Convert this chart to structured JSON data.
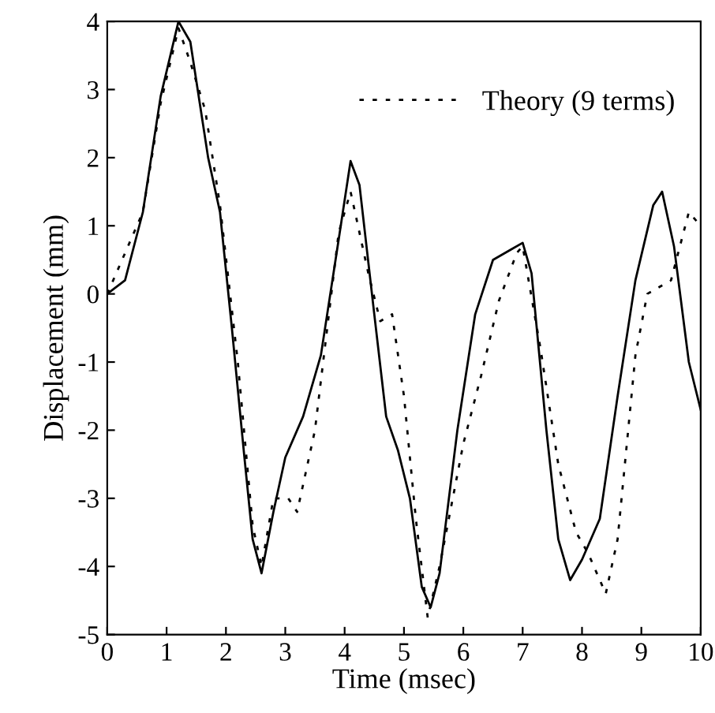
{
  "chart_data": {
    "type": "line",
    "xlabel": "Time (msec)",
    "ylabel": "Displacement (mm)",
    "xlim": [
      0,
      10
    ],
    "ylim": [
      -5,
      4
    ],
    "xticks": [
      0,
      1,
      2,
      3,
      4,
      5,
      6,
      7,
      8,
      9,
      10
    ],
    "yticks": [
      -5,
      -4,
      -3,
      -2,
      -1,
      0,
      1,
      2,
      3,
      4
    ],
    "grid": false,
    "legend": "top right",
    "series": [
      {
        "color": "#000000",
        "line_style": "solid",
        "x": [
          0,
          0.3,
          0.6,
          0.9,
          1.2,
          1.4,
          1.7,
          1.9,
          2.1,
          2.3,
          2.45,
          2.6,
          2.8,
          3.0,
          3.3,
          3.6,
          3.9,
          4.1,
          4.25,
          4.5,
          4.7,
          4.9,
          5.1,
          5.3,
          5.45,
          5.6,
          5.9,
          6.2,
          6.5,
          6.8,
          7.0,
          7.15,
          7.4,
          7.6,
          7.8,
          8.0,
          8.3,
          8.6,
          8.9,
          9.2,
          9.35,
          9.55,
          9.8,
          10
        ],
        "values": [
          0,
          0.2,
          1.2,
          2.9,
          4.0,
          3.7,
          2.0,
          1.2,
          -0.5,
          -2.3,
          -3.6,
          -4.1,
          -3.2,
          -2.4,
          -1.8,
          -0.9,
          0.8,
          1.95,
          1.6,
          -0.3,
          -1.8,
          -2.3,
          -3.0,
          -4.3,
          -4.6,
          -4.1,
          -2.0,
          -0.3,
          0.5,
          0.65,
          0.75,
          0.3,
          -2.0,
          -3.6,
          -4.2,
          -3.9,
          -3.3,
          -1.5,
          0.2,
          1.3,
          1.5,
          0.7,
          -1.0,
          -1.7
        ]
      },
      {
        "name": "Theory (9 terms)",
        "color": "#000000",
        "line_style": "dotted",
        "x": [
          0,
          0.6,
          0.9,
          1.2,
          1.4,
          1.65,
          1.9,
          2.2,
          2.45,
          2.6,
          2.8,
          3.05,
          3.2,
          3.5,
          3.9,
          4.1,
          4.4,
          4.6,
          4.8,
          5.0,
          5.2,
          5.4,
          5.6,
          6.0,
          6.3,
          6.6,
          6.9,
          7.0,
          7.3,
          7.6,
          7.9,
          8.1,
          8.4,
          8.6,
          8.9,
          9.1,
          9.5,
          9.8,
          10
        ],
        "values": [
          0,
          1.2,
          2.8,
          3.9,
          3.4,
          2.7,
          1.3,
          -1.0,
          -3.4,
          -4.0,
          -3.0,
          -3.0,
          -3.2,
          -2.0,
          0.9,
          1.5,
          0.3,
          -0.4,
          -0.3,
          -1.5,
          -3.3,
          -4.75,
          -4.0,
          -2.2,
          -1.2,
          -0.1,
          0.6,
          0.7,
          -0.8,
          -2.5,
          -3.5,
          -3.8,
          -4.4,
          -3.6,
          -0.9,
          0.0,
          0.2,
          1.2,
          1.0
        ]
      }
    ]
  }
}
